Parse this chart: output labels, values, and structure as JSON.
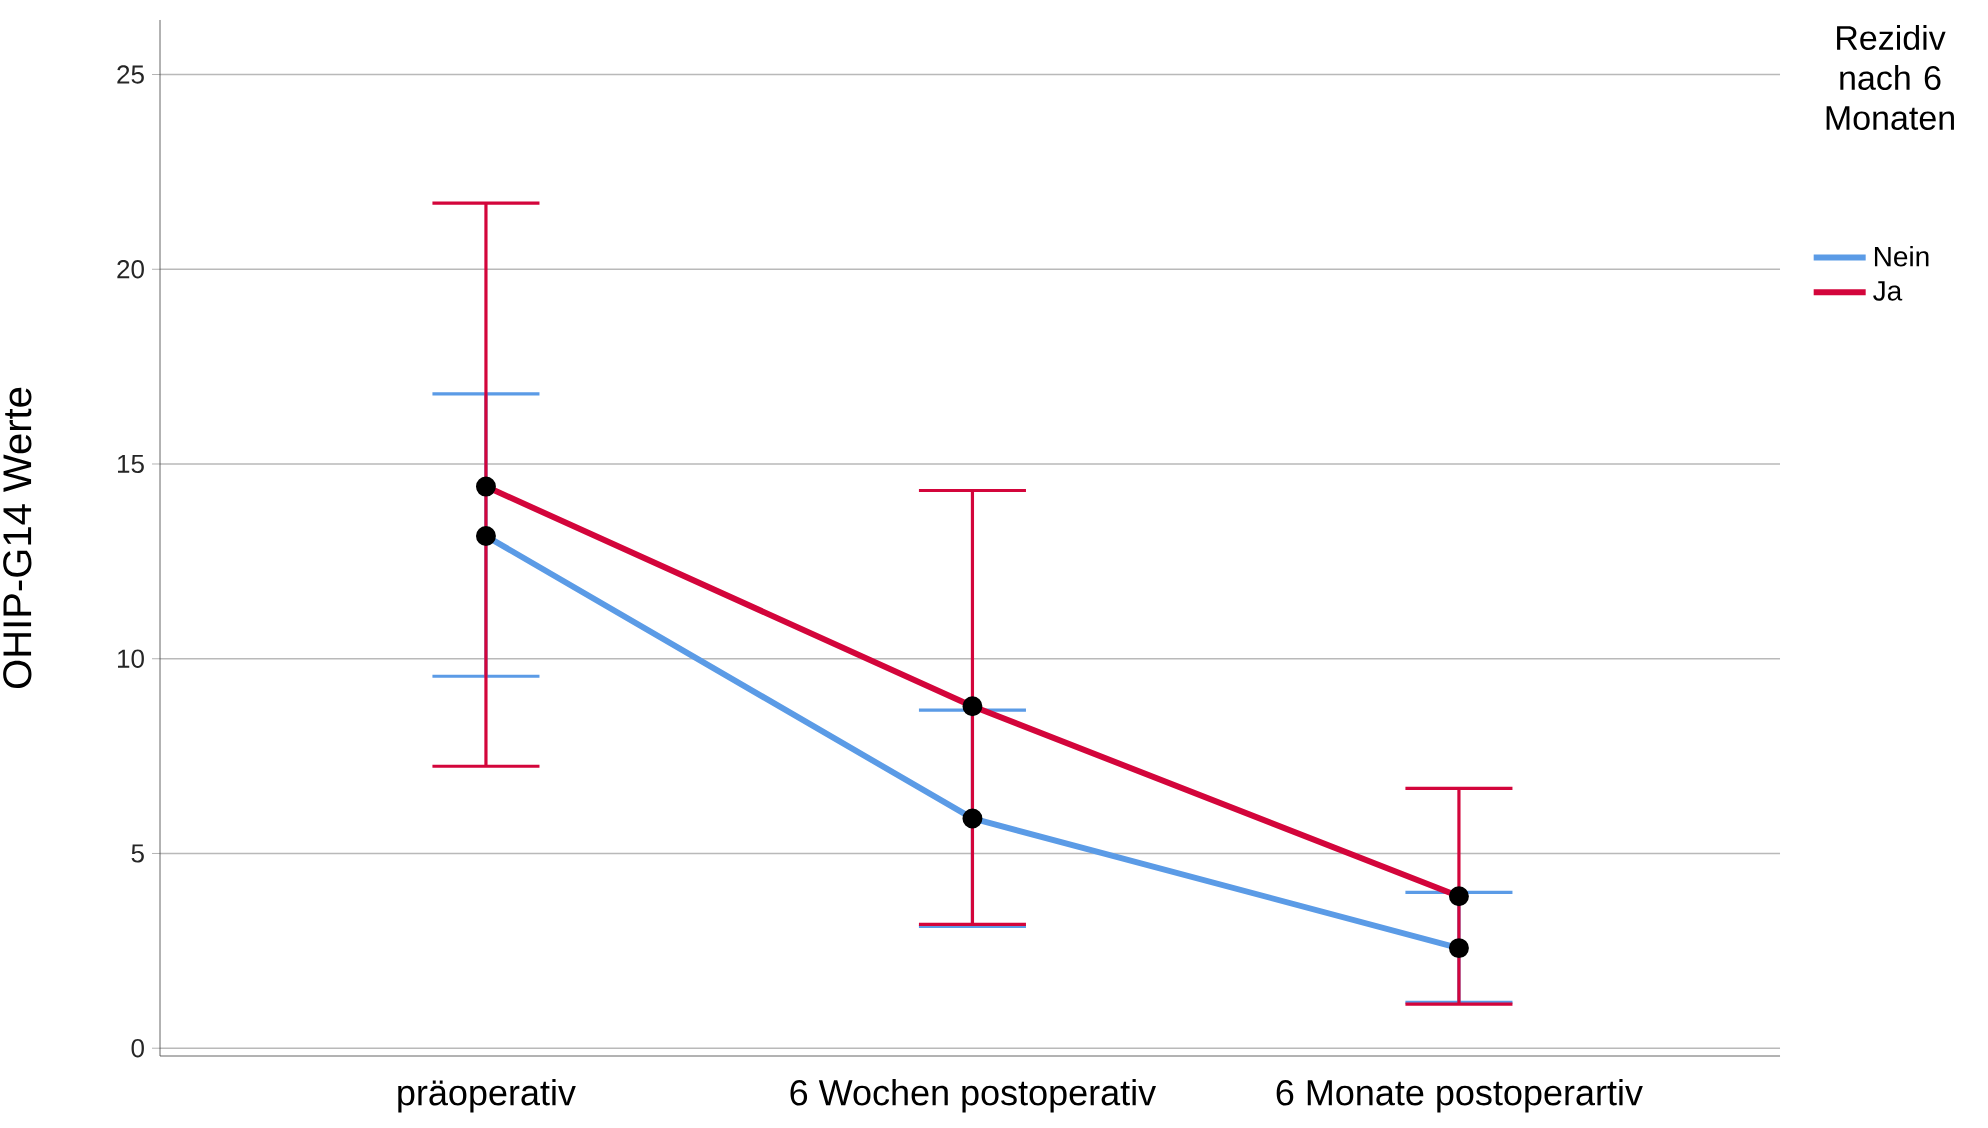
{
  "chart_data": {
    "type": "line",
    "ylabel": "OHIP-G14 Werte",
    "legend_title": "Rezidiv nach 6 Monaten",
    "categories": [
      "präoperativ",
      "6 Wochen postoperativ",
      "6 Monate postoperartiv"
    ],
    "series": [
      {
        "name": "Nein",
        "color": "#5b9be6",
        "values": [
          13.15,
          5.9,
          2.57
        ],
        "errors": [
          [
            9.55,
            16.8
          ],
          [
            3.13,
            8.68
          ],
          [
            1.18,
            4.0
          ]
        ]
      },
      {
        "name": "Ja",
        "color": "#d3053b",
        "values": [
          14.42,
          8.78,
          3.9
        ],
        "errors": [
          [
            7.24,
            21.7
          ],
          [
            3.18,
            14.32
          ],
          [
            1.13,
            6.67
          ]
        ]
      }
    ],
    "ylim": [
      -0.2,
      26.4
    ],
    "yticks": [
      0,
      5,
      10,
      15,
      20,
      25
    ],
    "grid": "y",
    "legend": "top right",
    "marker": "circle",
    "line_style": "solid"
  }
}
